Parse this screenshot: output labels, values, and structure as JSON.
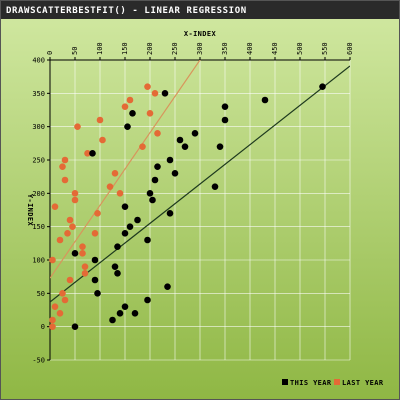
{
  "chart_data": {
    "type": "scatter",
    "title": "DRAWSCATTERBESTFIT() - LINEAR REGRESSION",
    "xlabel": "X-INDEX",
    "ylabel": "Y-INDEX",
    "xlim": [
      0,
      600
    ],
    "ylim": [
      -50,
      400
    ],
    "xticks": [
      "0",
      "50",
      "100",
      "150",
      "200",
      "250",
      "300",
      "350",
      "400",
      "450",
      "500",
      "550",
      "600"
    ],
    "yticks": [
      "-50",
      "0",
      "50",
      "100",
      "150",
      "200",
      "250",
      "300",
      "350",
      "400"
    ],
    "grid": true,
    "legend_position": "bottom-right",
    "colors": {
      "title_bar": "#2a2a2a",
      "background_top": "#d2e9a3",
      "background_bottom": "#8fb744",
      "grid": "#ffffff",
      "this_year": "#000000",
      "last_year": "#e46a36",
      "this_year_fit": "#1e3a1e",
      "last_year_fit": "#d8955c"
    },
    "series": [
      {
        "name": "THIS YEAR",
        "color": "#000000",
        "fit_line": {
          "intercept": 37,
          "slope": 0.59
        },
        "points": [
          [
            50,
            0
          ],
          [
            50,
            110
          ],
          [
            85,
            260
          ],
          [
            90,
            100
          ],
          [
            90,
            70
          ],
          [
            95,
            50
          ],
          [
            125,
            10
          ],
          [
            130,
            90
          ],
          [
            135,
            120
          ],
          [
            135,
            80
          ],
          [
            140,
            20
          ],
          [
            150,
            30
          ],
          [
            150,
            140
          ],
          [
            150,
            180
          ],
          [
            155,
            300
          ],
          [
            160,
            150
          ],
          [
            165,
            320
          ],
          [
            170,
            20
          ],
          [
            175,
            160
          ],
          [
            195,
            40
          ],
          [
            195,
            130
          ],
          [
            200,
            200
          ],
          [
            205,
            190
          ],
          [
            210,
            220
          ],
          [
            215,
            240
          ],
          [
            230,
            350
          ],
          [
            235,
            60
          ],
          [
            240,
            170
          ],
          [
            240,
            250
          ],
          [
            250,
            230
          ],
          [
            260,
            280
          ],
          [
            270,
            270
          ],
          [
            290,
            290
          ],
          [
            330,
            210
          ],
          [
            340,
            270
          ],
          [
            350,
            310
          ],
          [
            350,
            330
          ],
          [
            430,
            340
          ],
          [
            545,
            360
          ]
        ]
      },
      {
        "name": "LAST YEAR",
        "color": "#e46a36",
        "fit_line": {
          "intercept": 73,
          "slope": 1.09
        },
        "points": [
          [
            5,
            0
          ],
          [
            5,
            10
          ],
          [
            5,
            100
          ],
          [
            10,
            30
          ],
          [
            10,
            180
          ],
          [
            20,
            20
          ],
          [
            20,
            130
          ],
          [
            25,
            240
          ],
          [
            25,
            50
          ],
          [
            30,
            250
          ],
          [
            30,
            40
          ],
          [
            30,
            220
          ],
          [
            35,
            140
          ],
          [
            40,
            70
          ],
          [
            40,
            160
          ],
          [
            45,
            150
          ],
          [
            50,
            200
          ],
          [
            50,
            190
          ],
          [
            55,
            300
          ],
          [
            65,
            110
          ],
          [
            65,
            120
          ],
          [
            70,
            80
          ],
          [
            70,
            90
          ],
          [
            75,
            260
          ],
          [
            90,
            140
          ],
          [
            95,
            170
          ],
          [
            100,
            310
          ],
          [
            105,
            280
          ],
          [
            120,
            210
          ],
          [
            130,
            230
          ],
          [
            140,
            200
          ],
          [
            150,
            330
          ],
          [
            160,
            340
          ],
          [
            185,
            270
          ],
          [
            195,
            360
          ],
          [
            200,
            320
          ],
          [
            210,
            350
          ],
          [
            215,
            290
          ]
        ]
      }
    ]
  }
}
